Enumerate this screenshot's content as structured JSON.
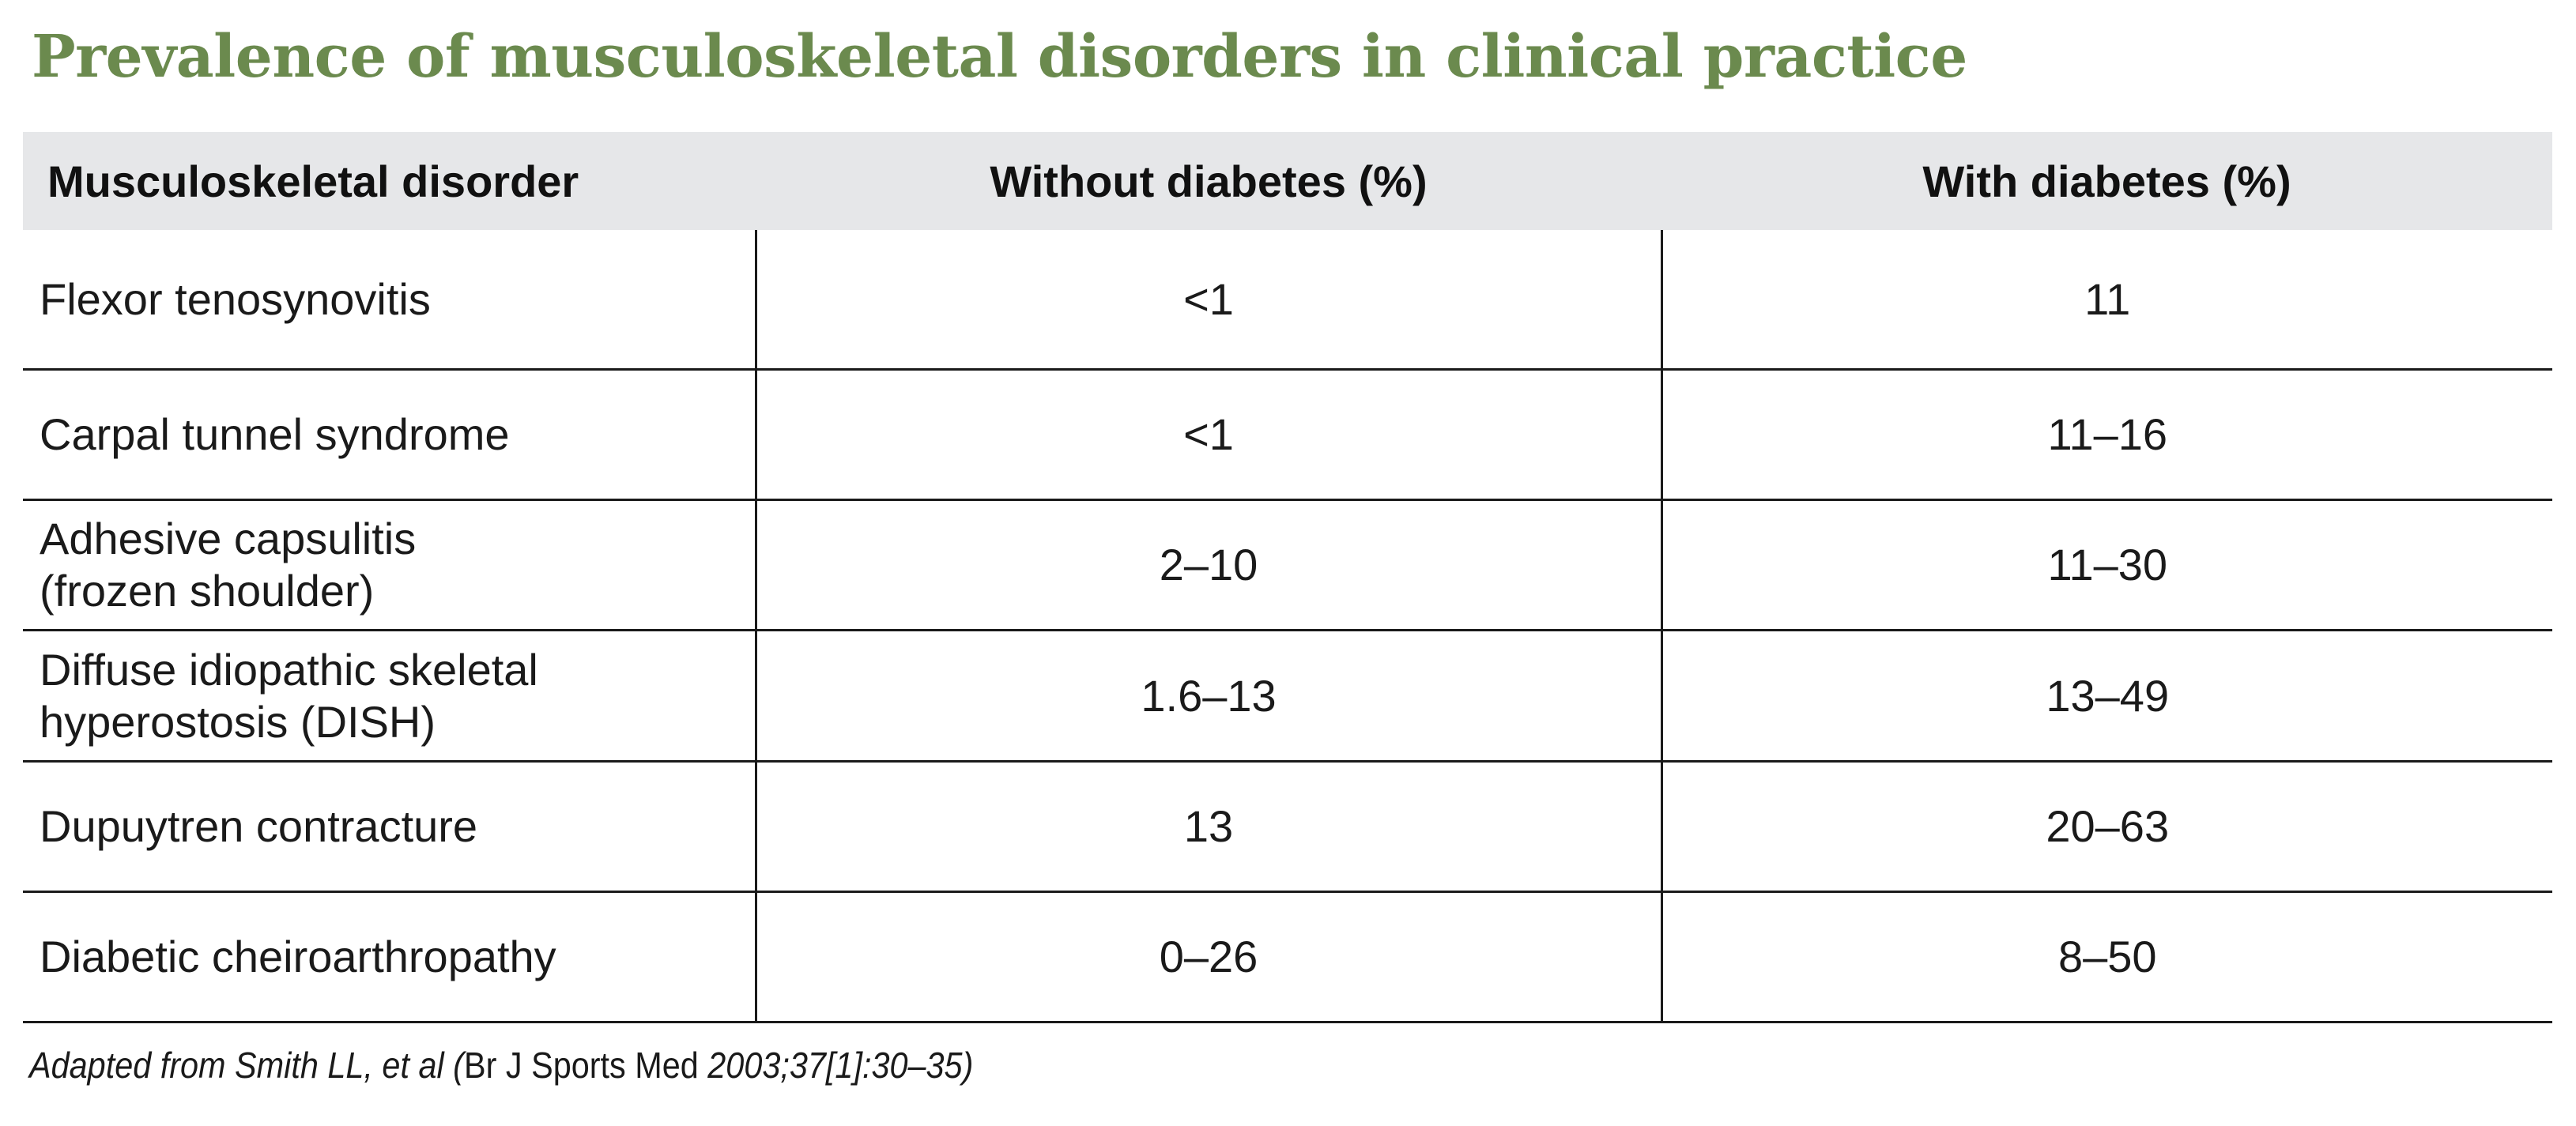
{
  "title": "Prevalence of musculoskeletal disorders in clinical practice",
  "table": {
    "headers": {
      "disorder": "Musculoskeletal disorder",
      "without": "Without diabetes (%)",
      "with": "With diabetes (%)"
    },
    "rows": [
      {
        "line1": "Flexor tenosynovitis",
        "line2": "",
        "without": "<1",
        "with": "11"
      },
      {
        "line1": "Carpal tunnel syndrome",
        "line2": "",
        "without": "<1",
        "with": "11–16"
      },
      {
        "line1": "Adhesive capsulitis",
        "line2": "(frozen shoulder)",
        "without": "2–10",
        "with": "11–30"
      },
      {
        "line1": "Diffuse idiopathic skeletal",
        "line2": "hyperostosis (DISH)",
        "without": "1.6–13",
        "with": "13–49"
      },
      {
        "line1": "Dupuytren contracture",
        "line2": "",
        "without": "13",
        "with": "20–63"
      },
      {
        "line1": "Diabetic cheiroarthropathy",
        "line2": "",
        "without": "0–26",
        "with": "8–50"
      }
    ]
  },
  "footnote": {
    "part1": "Adapted from Smith LL, et al (",
    "part2": "Br J Sports Med",
    "part3": " 2003;37[1]:30–35)"
  }
}
